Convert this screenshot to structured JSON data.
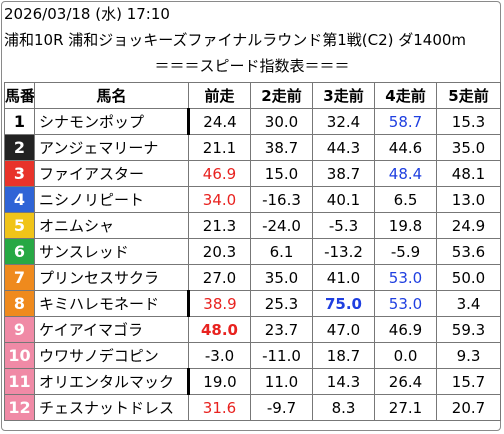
{
  "header": {
    "datetime": "2026/03/18 (水) 17:10",
    "race": "浦和10R 浦和ジョッキーズファイナルラウンド第1戦(C2) ダ1400m",
    "caption": "＝＝＝スピード指数表＝＝＝"
  },
  "table": {
    "columns": [
      "馬番",
      "馬名",
      "前走",
      "2走前",
      "3走前",
      "4走前",
      "5走前"
    ],
    "rows": [
      {
        "num": "1",
        "name": "シナモンポップ",
        "v": [
          "24.4",
          "30.0",
          "32.4",
          "58.7",
          "15.3"
        ]
      },
      {
        "num": "2",
        "name": "アンジェマリーナ",
        "v": [
          "21.1",
          "38.7",
          "44.3",
          "44.6",
          "35.0"
        ]
      },
      {
        "num": "3",
        "name": "ファイアスター",
        "v": [
          "46.9",
          "15.0",
          "38.7",
          "48.4",
          "48.1"
        ]
      },
      {
        "num": "4",
        "name": "ニシノリピート",
        "v": [
          "34.0",
          "-16.3",
          "40.1",
          "6.5",
          "13.0"
        ]
      },
      {
        "num": "5",
        "name": "オニムシャ",
        "v": [
          "21.3",
          "-24.0",
          "-5.3",
          "19.8",
          "24.9"
        ]
      },
      {
        "num": "6",
        "name": "サンスレッド",
        "v": [
          "20.3",
          "6.1",
          "-13.2",
          "-5.9",
          "53.6"
        ]
      },
      {
        "num": "7",
        "name": "プリンセスサクラ",
        "v": [
          "27.0",
          "35.0",
          "41.0",
          "53.0",
          "50.0"
        ]
      },
      {
        "num": "8",
        "name": "キミハレモネード",
        "v": [
          "38.9",
          "25.3",
          "75.0",
          "53.0",
          "3.4"
        ]
      },
      {
        "num": "9",
        "name": "ケイアイマゴラ",
        "v": [
          "48.0",
          "23.7",
          "47.0",
          "46.9",
          "59.3"
        ]
      },
      {
        "num": "10",
        "name": "ウワサノデコピン",
        "v": [
          "-3.0",
          "-11.0",
          "18.7",
          "0.0",
          "9.3"
        ]
      },
      {
        "num": "11",
        "name": "オリエンタルマック",
        "v": [
          "19.0",
          "11.0",
          "14.3",
          "26.4",
          "15.7"
        ]
      },
      {
        "num": "12",
        "name": "チェスナットドレス",
        "v": [
          "31.6",
          "-9.7",
          "8.3",
          "27.1",
          "20.7"
        ]
      }
    ]
  },
  "colors": {
    "red_value": "#e8221f",
    "blue_value": "#1f3fe0",
    "waku": [
      "#ffffff",
      "#222222",
      "#e8332a",
      "#2f64d6",
      "#f0c419",
      "#27a844",
      "#ef8a1d",
      "#f08aa6"
    ]
  }
}
